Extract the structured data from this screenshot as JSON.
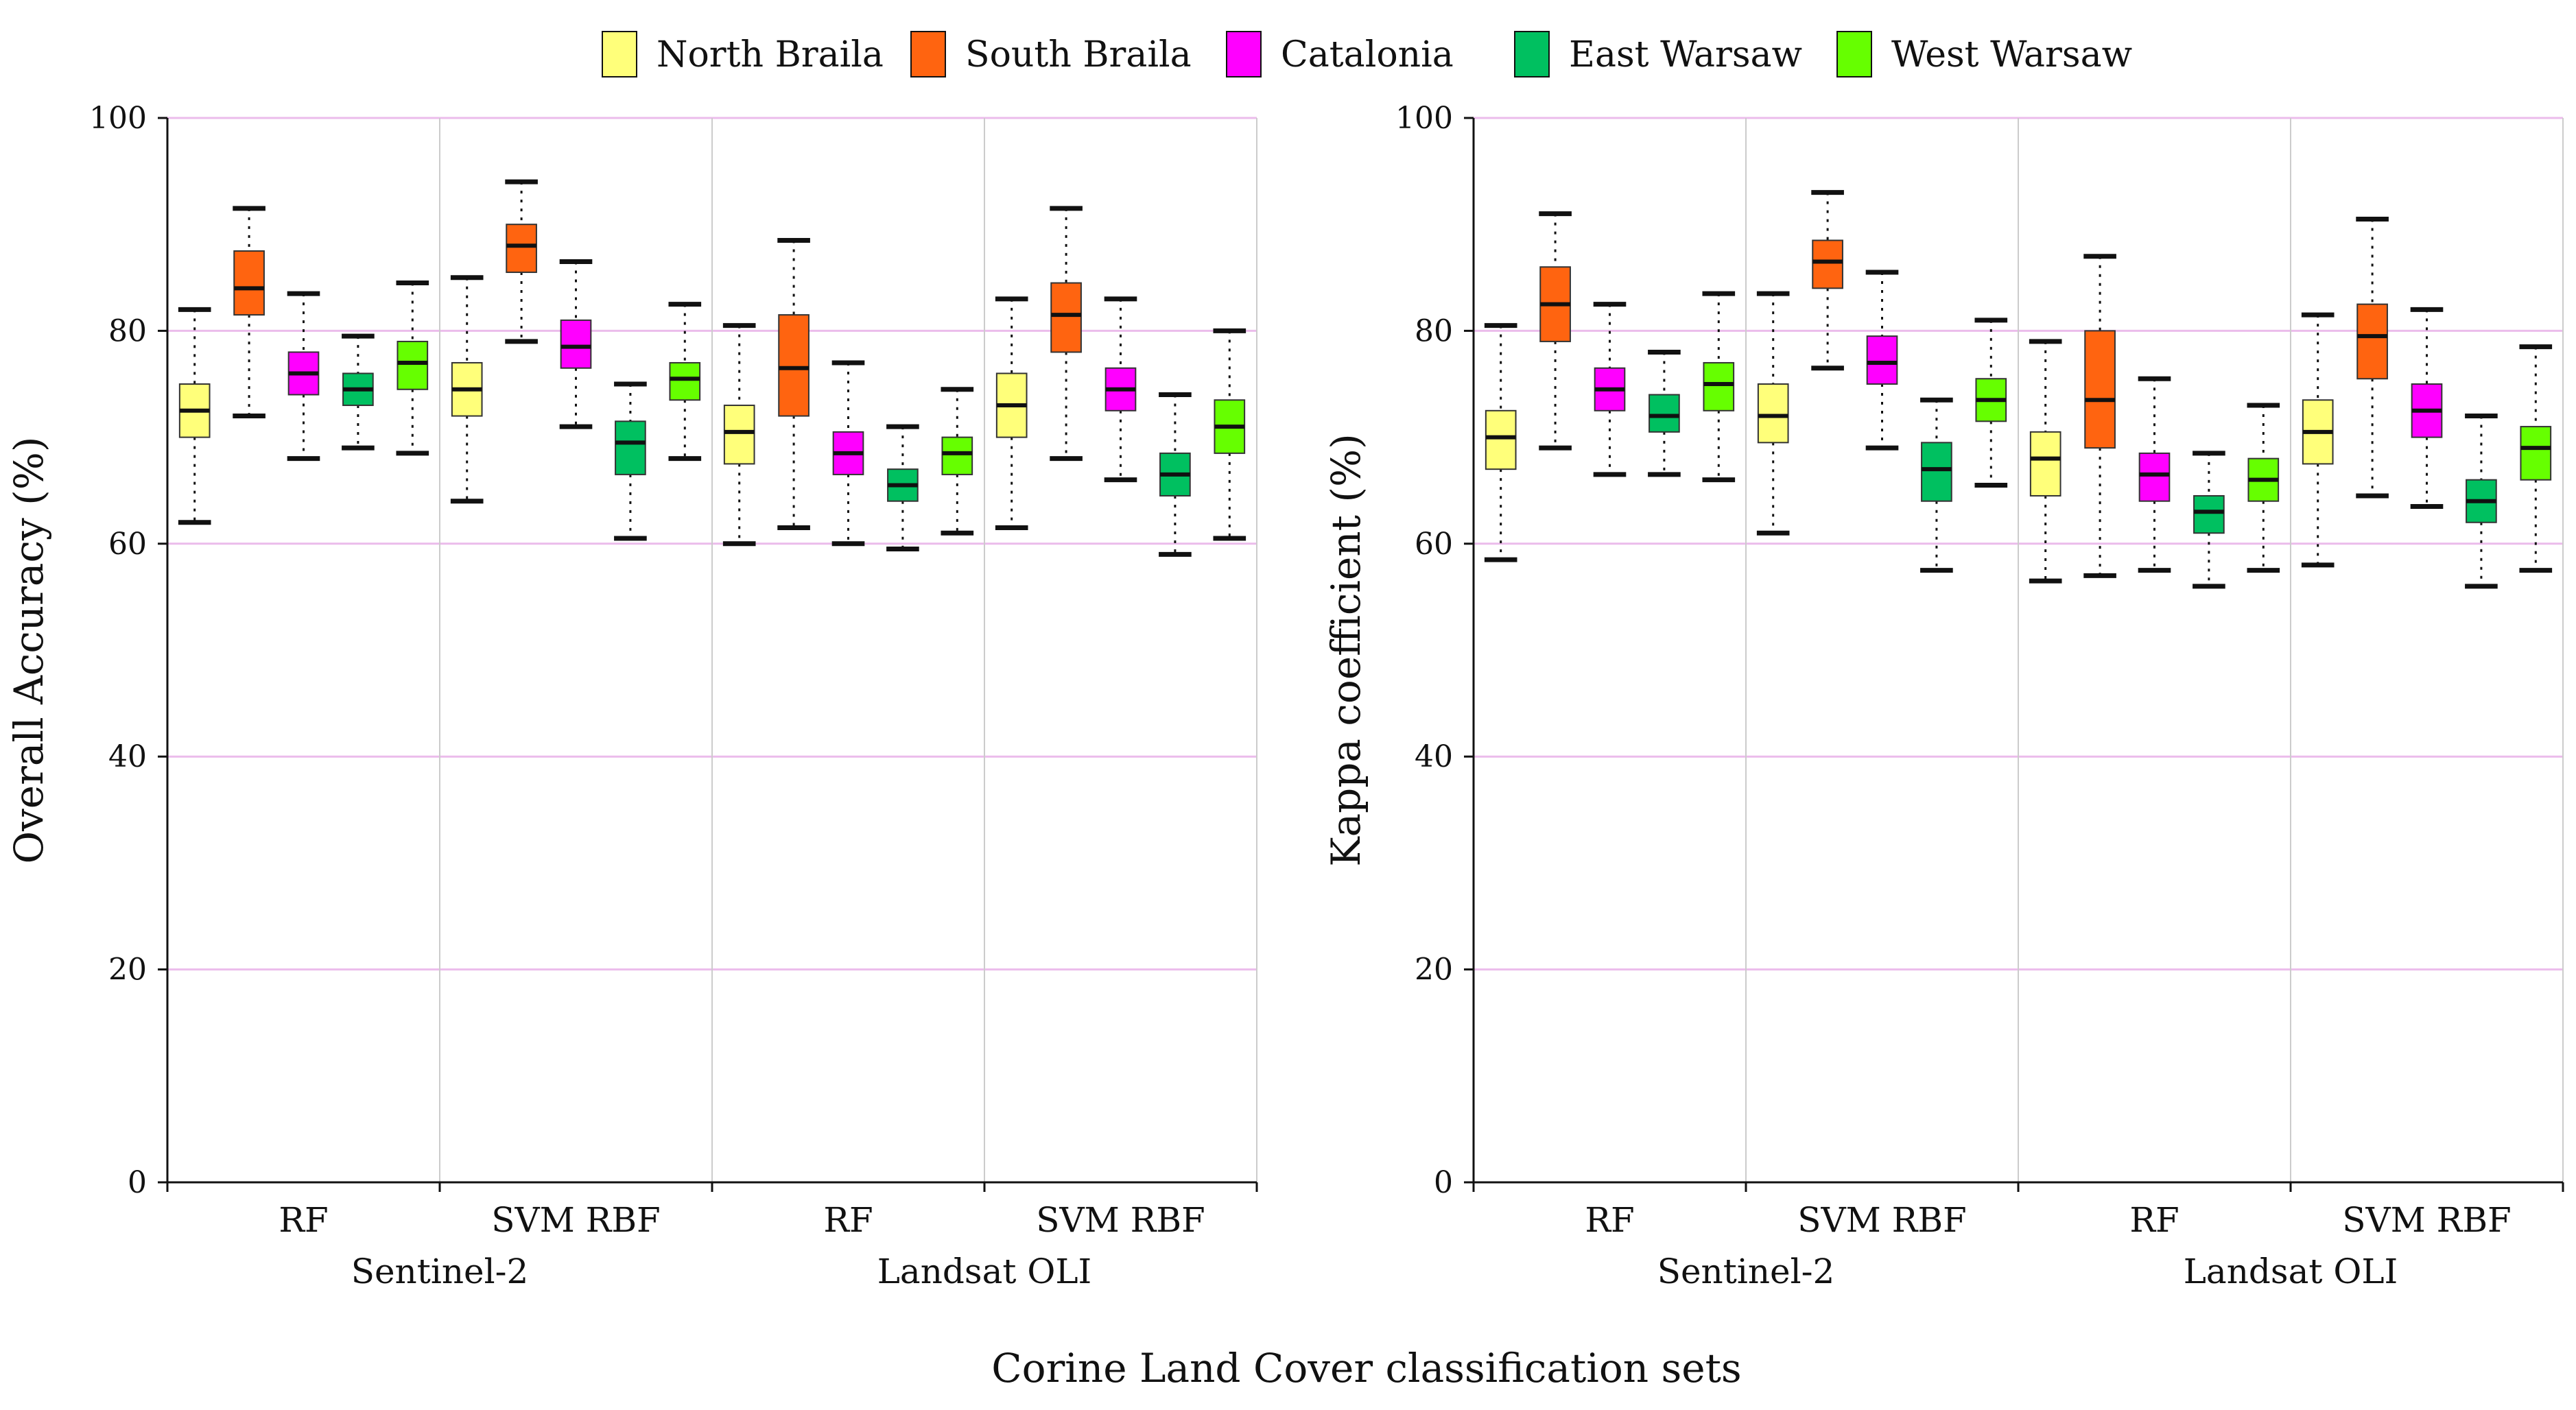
{
  "legend": [
    {
      "name": "North Braila",
      "color": "#FFFF7A"
    },
    {
      "name": "South Braila",
      "color": "#FF6410"
    },
    {
      "name": "Catalonia",
      "color": "#FF00FF"
    },
    {
      "name": "East Warsaw",
      "color": "#00C060"
    },
    {
      "name": "West Warsaw",
      "color": "#66FF00"
    }
  ],
  "x_title": "Corine Land Cover classification sets",
  "chart_data": [
    {
      "type": "boxplot",
      "ylabel": "Overall Accuracy (%)",
      "ylim": [
        0,
        100
      ],
      "yticks": [
        0,
        20,
        40,
        60,
        80,
        100
      ],
      "grid": true,
      "groups": [
        {
          "label": "RF",
          "sensor": "Sentinel-2",
          "boxes": [
            {
              "series": "North Braila",
              "min": 62,
              "q1": 70,
              "median": 72.5,
              "q3": 75,
              "max": 82
            },
            {
              "series": "South Braila",
              "min": 72,
              "q1": 81.5,
              "median": 84,
              "q3": 87.5,
              "max": 91.5
            },
            {
              "series": "Catalonia",
              "min": 68,
              "q1": 74,
              "median": 76,
              "q3": 78,
              "max": 83.5
            },
            {
              "series": "East Warsaw",
              "min": 69,
              "q1": 73,
              "median": 74.5,
              "q3": 76,
              "max": 79.5
            },
            {
              "series": "West Warsaw",
              "min": 68.5,
              "q1": 74.5,
              "median": 77,
              "q3": 79,
              "max": 84.5
            }
          ]
        },
        {
          "label": "SVM RBF",
          "sensor": "Sentinel-2",
          "boxes": [
            {
              "series": "North Braila",
              "min": 64,
              "q1": 72,
              "median": 74.5,
              "q3": 77,
              "max": 85
            },
            {
              "series": "South Braila",
              "min": 79,
              "q1": 85.5,
              "median": 88,
              "q3": 90,
              "max": 94
            },
            {
              "series": "Catalonia",
              "min": 71,
              "q1": 76.5,
              "median": 78.5,
              "q3": 81,
              "max": 86.5
            },
            {
              "series": "East Warsaw",
              "min": 60.5,
              "q1": 66.5,
              "median": 69.5,
              "q3": 71.5,
              "max": 75
            },
            {
              "series": "West Warsaw",
              "min": 68,
              "q1": 73.5,
              "median": 75.5,
              "q3": 77,
              "max": 82.5
            }
          ]
        },
        {
          "label": "RF",
          "sensor": "Landsat OLI",
          "boxes": [
            {
              "series": "North Braila",
              "min": 60,
              "q1": 67.5,
              "median": 70.5,
              "q3": 73,
              "max": 80.5
            },
            {
              "series": "South Braila",
              "min": 61.5,
              "q1": 72,
              "median": 76.5,
              "q3": 81.5,
              "max": 88.5
            },
            {
              "series": "Catalonia",
              "min": 60,
              "q1": 66.5,
              "median": 68.5,
              "q3": 70.5,
              "max": 77
            },
            {
              "series": "East Warsaw",
              "min": 59.5,
              "q1": 64,
              "median": 65.5,
              "q3": 67,
              "max": 71
            },
            {
              "series": "West Warsaw",
              "min": 61,
              "q1": 66.5,
              "median": 68.5,
              "q3": 70,
              "max": 74.5
            }
          ]
        },
        {
          "label": "SVM RBF",
          "sensor": "Landsat OLI",
          "boxes": [
            {
              "series": "North Braila",
              "min": 61.5,
              "q1": 70,
              "median": 73,
              "q3": 76,
              "max": 83
            },
            {
              "series": "South Braila",
              "min": 68,
              "q1": 78,
              "median": 81.5,
              "q3": 84.5,
              "max": 91.5
            },
            {
              "series": "Catalonia",
              "min": 66,
              "q1": 72.5,
              "median": 74.5,
              "q3": 76.5,
              "max": 83
            },
            {
              "series": "East Warsaw",
              "min": 59,
              "q1": 64.5,
              "median": 66.5,
              "q3": 68.5,
              "max": 74
            },
            {
              "series": "West Warsaw",
              "min": 60.5,
              "q1": 68.5,
              "median": 71,
              "q3": 73.5,
              "max": 80
            }
          ]
        }
      ],
      "sensors": [
        "Sentinel-2",
        "Landsat OLI"
      ]
    },
    {
      "type": "boxplot",
      "ylabel": "Kappa coefficient (%)",
      "ylim": [
        0,
        100
      ],
      "yticks": [
        0,
        20,
        40,
        60,
        80,
        100
      ],
      "grid": true,
      "groups": [
        {
          "label": "RF",
          "sensor": "Sentinel-2",
          "boxes": [
            {
              "series": "North Braila",
              "min": 58.5,
              "q1": 67,
              "median": 70,
              "q3": 72.5,
              "max": 80.5
            },
            {
              "series": "South Braila",
              "min": 69,
              "q1": 79,
              "median": 82.5,
              "q3": 86,
              "max": 91
            },
            {
              "series": "Catalonia",
              "min": 66.5,
              "q1": 72.5,
              "median": 74.5,
              "q3": 76.5,
              "max": 82.5
            },
            {
              "series": "East Warsaw",
              "min": 66.5,
              "q1": 70.5,
              "median": 72,
              "q3": 74,
              "max": 78
            },
            {
              "series": "West Warsaw",
              "min": 66,
              "q1": 72.5,
              "median": 75,
              "q3": 77,
              "max": 83.5
            }
          ]
        },
        {
          "label": "SVM RBF",
          "sensor": "Sentinel-2",
          "boxes": [
            {
              "series": "North Braila",
              "min": 61,
              "q1": 69.5,
              "median": 72,
              "q3": 75,
              "max": 83.5
            },
            {
              "series": "South Braila",
              "min": 76.5,
              "q1": 84,
              "median": 86.5,
              "q3": 88.5,
              "max": 93
            },
            {
              "series": "Catalonia",
              "min": 69,
              "q1": 75,
              "median": 77,
              "q3": 79.5,
              "max": 85.5
            },
            {
              "series": "East Warsaw",
              "min": 57.5,
              "q1": 64,
              "median": 67,
              "q3": 69.5,
              "max": 73.5
            },
            {
              "series": "West Warsaw",
              "min": 65.5,
              "q1": 71.5,
              "median": 73.5,
              "q3": 75.5,
              "max": 81
            }
          ]
        },
        {
          "label": "RF",
          "sensor": "Landsat OLI",
          "boxes": [
            {
              "series": "North Braila",
              "min": 56.5,
              "q1": 64.5,
              "median": 68,
              "q3": 70.5,
              "max": 79
            },
            {
              "series": "South Braila",
              "min": 57,
              "q1": 69,
              "median": 73.5,
              "q3": 80,
              "max": 87
            },
            {
              "series": "Catalonia",
              "min": 57.5,
              "q1": 64,
              "median": 66.5,
              "q3": 68.5,
              "max": 75.5
            },
            {
              "series": "East Warsaw",
              "min": 56,
              "q1": 61,
              "median": 63,
              "q3": 64.5,
              "max": 68.5
            },
            {
              "series": "West Warsaw",
              "min": 57.5,
              "q1": 64,
              "median": 66,
              "q3": 68,
              "max": 73
            }
          ]
        },
        {
          "label": "SVM RBF",
          "sensor": "Landsat OLI",
          "boxes": [
            {
              "series": "North Braila",
              "min": 58,
              "q1": 67.5,
              "median": 70.5,
              "q3": 73.5,
              "max": 81.5
            },
            {
              "series": "South Braila",
              "min": 64.5,
              "q1": 75.5,
              "median": 79.5,
              "q3": 82.5,
              "max": 90.5
            },
            {
              "series": "Catalonia",
              "min": 63.5,
              "q1": 70,
              "median": 72.5,
              "q3": 75,
              "max": 82
            },
            {
              "series": "East Warsaw",
              "min": 56,
              "q1": 62,
              "median": 64,
              "q3": 66,
              "max": 72
            },
            {
              "series": "West Warsaw",
              "min": 57.5,
              "q1": 66,
              "median": 69,
              "q3": 71,
              "max": 78.5
            }
          ]
        }
      ],
      "sensors": [
        "Sentinel-2",
        "Landsat OLI"
      ]
    }
  ]
}
